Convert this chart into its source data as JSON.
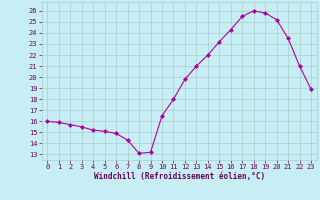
{
  "x": [
    0,
    1,
    2,
    3,
    4,
    5,
    6,
    7,
    8,
    9,
    10,
    11,
    12,
    13,
    14,
    15,
    16,
    17,
    18,
    19,
    20,
    21,
    22,
    23
  ],
  "y": [
    16.0,
    15.9,
    15.7,
    15.5,
    15.2,
    15.1,
    14.9,
    14.3,
    13.1,
    13.2,
    16.5,
    18.0,
    19.8,
    21.0,
    22.0,
    23.2,
    24.3,
    25.5,
    26.0,
    25.8,
    25.2,
    23.5,
    21.0,
    18.9
  ],
  "line_color": "#aa00aa",
  "marker": "D",
  "marker_size": 2,
  "bg_color": "#c8eef5",
  "grid_color": "#aacccc",
  "xlabel": "Windchill (Refroidissement éolien,°C)",
  "ylabel_values": [
    13,
    14,
    15,
    16,
    17,
    18,
    19,
    20,
    21,
    22,
    23,
    24,
    25,
    26
  ],
  "ylim": [
    12.5,
    26.8
  ],
  "xlim": [
    -0.5,
    23.5
  ],
  "tick_color": "#660066",
  "xlabel_color": "#660066",
  "axis_bg": "#c8eef5",
  "figure_bg": "#c8eef5",
  "tick_fontsize": 5,
  "xlabel_fontsize": 5.5
}
